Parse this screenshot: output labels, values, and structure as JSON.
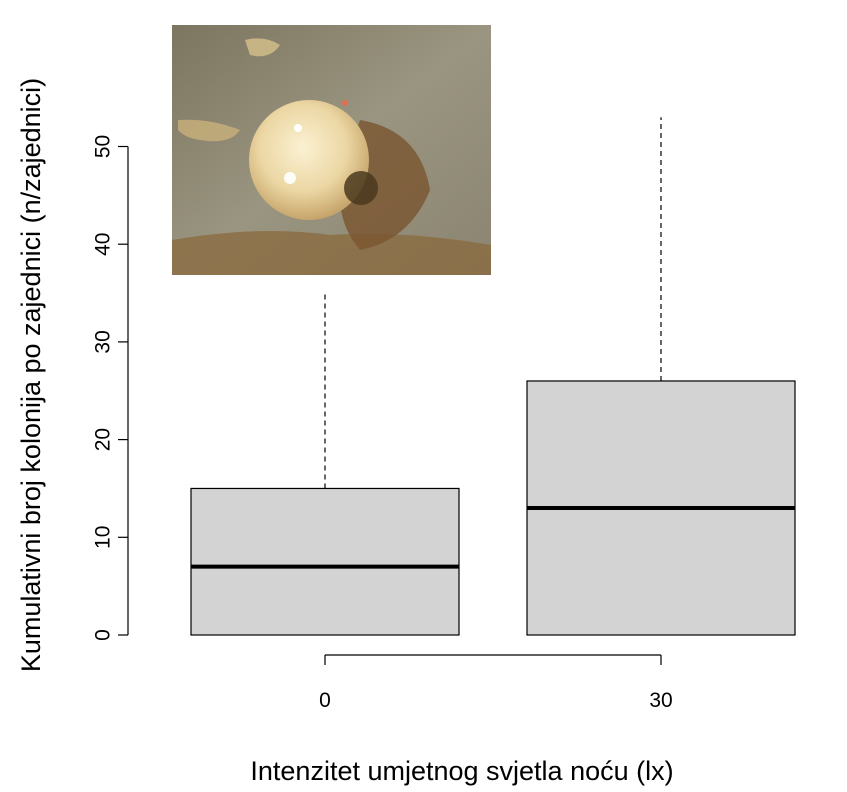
{
  "chart_data": {
    "type": "box",
    "xlabel": "Intenzitet umjetnog svjetla noću (lx)",
    "ylabel": "Kumulativni broj kolonija po zajednici (n/zajednici)",
    "categories": [
      "0",
      "30"
    ],
    "boxes": [
      {
        "category": "0",
        "min": 0,
        "q1": 0,
        "median": 7,
        "q3": 15,
        "max": 35
      },
      {
        "category": "30",
        "min": 0,
        "q1": 0,
        "median": 13,
        "q3": 26,
        "max": 53
      }
    ],
    "yticks": [
      0,
      10,
      20,
      30,
      40,
      50
    ],
    "ylim": [
      0,
      55
    ],
    "inset_photo": "coral colony photograph (top-left inset)",
    "colors": {
      "box_fill": "#d3d3d3",
      "line": "#000000"
    }
  }
}
